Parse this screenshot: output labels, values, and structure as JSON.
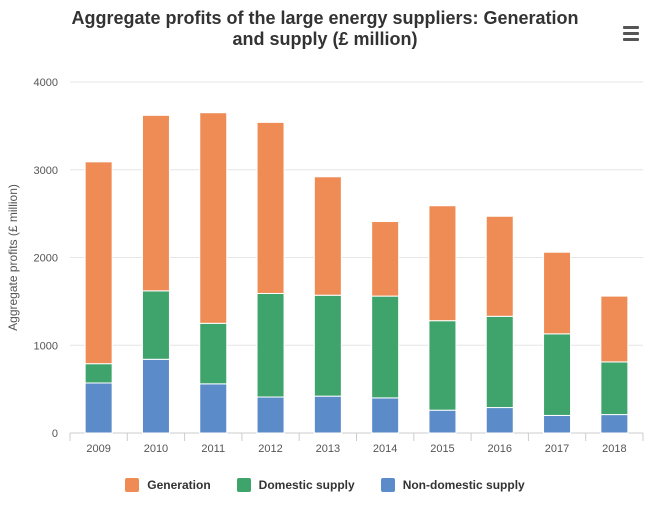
{
  "chart_title_lines": [
    "Aggregate profits of the large energy suppliers: Generation",
    "and supply (£ million)"
  ],
  "menu_icon": "hamburger-menu-icon",
  "chart_data": {
    "type": "bar",
    "stacked": true,
    "title": "Aggregate profits of the large energy suppliers: Generation and supply (£ million)",
    "xlabel": "",
    "ylabel": "Aggregate profits (£ million)",
    "ylim": [
      0,
      4000
    ],
    "yticks": [
      0,
      1000,
      2000,
      3000,
      4000
    ],
    "grid": true,
    "legend_position": "bottom",
    "categories": [
      "2009",
      "2010",
      "2011",
      "2012",
      "2013",
      "2014",
      "2015",
      "2016",
      "2017",
      "2018"
    ],
    "series": [
      {
        "name": "Non-domestic supply",
        "color": "#5b8bc9",
        "values": [
          570,
          840,
          560,
          410,
          420,
          400,
          260,
          290,
          200,
          210
        ]
      },
      {
        "name": "Domestic supply",
        "color": "#3fa46b",
        "values": [
          220,
          780,
          690,
          1180,
          1150,
          1160,
          1020,
          1040,
          930,
          600
        ]
      },
      {
        "name": "Generation",
        "color": "#ef8c55",
        "values": [
          2300,
          2000,
          2400,
          1950,
          1350,
          850,
          1310,
          1140,
          930,
          750
        ]
      }
    ]
  },
  "legend": [
    {
      "label": "Generation",
      "color": "#ef8c55"
    },
    {
      "label": "Domestic supply",
      "color": "#3fa46b"
    },
    {
      "label": "Non-domestic supply",
      "color": "#5b8bc9"
    }
  ]
}
